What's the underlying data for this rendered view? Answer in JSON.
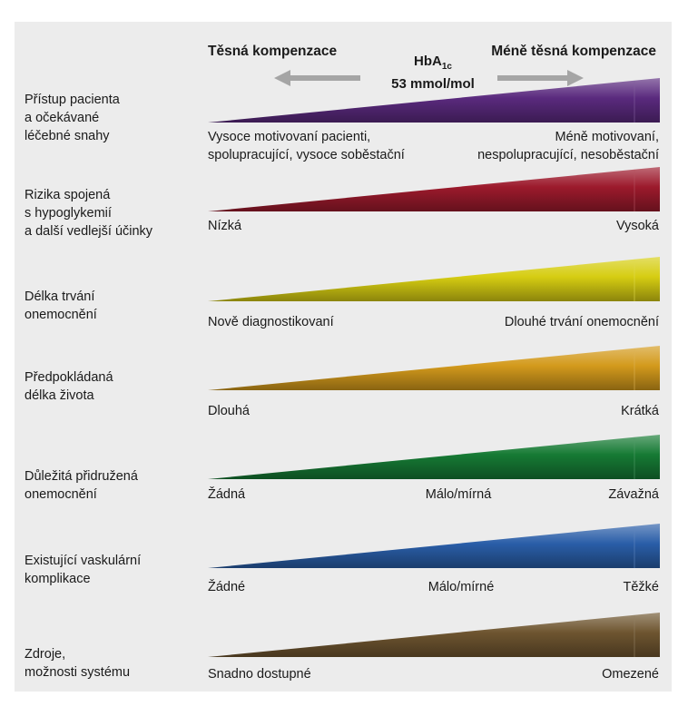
{
  "header": {
    "left": "Těsná kompenzace",
    "right": "Méně těsná kompenzace",
    "hba_main": "HbA",
    "hba_sub": "1c",
    "hba_value": "53 mmol/mol"
  },
  "rows": [
    {
      "label": [
        "Přístup pacienta",
        "a očekávané",
        "léčebné snahy"
      ],
      "color": "#5a2a7e",
      "left": [
        "Vysoce motivovaní pacienti,",
        "spolupracující, vysoce soběstační"
      ],
      "right": [
        "Méně motivovaní,",
        "nespolupracující, nesoběstační"
      ]
    },
    {
      "label": [
        "Rizika spojená",
        "s hypoglykemií",
        "a další vedlejší účinky"
      ],
      "color": "#9c1a2c",
      "left": [
        "Nízká"
      ],
      "right": [
        "Vysoká"
      ]
    },
    {
      "label": [
        "Délka trvání",
        "onemocnění"
      ],
      "color": "#d6cd12",
      "left": [
        "Nově diagnostikovaní"
      ],
      "right": [
        "Dlouhé trvání onemocnění"
      ]
    },
    {
      "label": [
        "Předpokládaná",
        "délka života"
      ],
      "color": "#d39a1c",
      "left": [
        "Dlouhá"
      ],
      "right": [
        "Krátká"
      ]
    },
    {
      "label": [
        "Důležitá přidružená",
        "onemocnění"
      ],
      "color": "#167a34",
      "left": [
        "Žádná"
      ],
      "middle": [
        "Málo/mírná"
      ],
      "right": [
        "Závažná"
      ]
    },
    {
      "label": [
        "Existující vaskulární",
        "komplikace"
      ],
      "color": "#2a5ea8",
      "left": [
        "Žádné"
      ],
      "middle": [
        "Málo/mírné"
      ],
      "right": [
        "Těžké"
      ]
    },
    {
      "label": [
        "Zdroje,",
        "možnosti systému"
      ],
      "color": "#6e5530",
      "left": [
        "Snadno dostupné"
      ],
      "right": [
        "Omezené"
      ]
    }
  ]
}
